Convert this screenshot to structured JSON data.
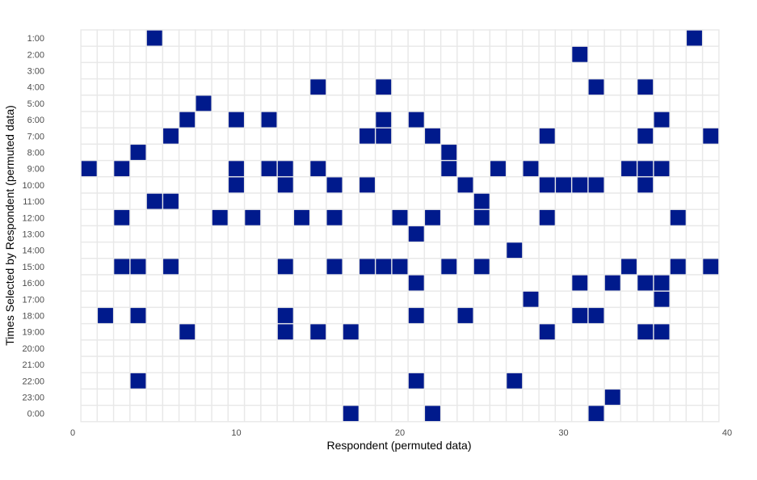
{
  "chart_data": {
    "type": "heatmap",
    "title": "",
    "xlabel": "Respondent (permuted data)",
    "ylabel": "Times Selected by Respondent (permuted data)",
    "xlim": [
      0,
      40
    ],
    "x_ticks": [
      0,
      10,
      20,
      30,
      40
    ],
    "y_categories": [
      "1:00",
      "2:00",
      "3:00",
      "4:00",
      "5:00",
      "6:00",
      "7:00",
      "8:00",
      "9:00",
      "10:00",
      "11:00",
      "12:00",
      "13:00",
      "14:00",
      "15:00",
      "16:00",
      "17:00",
      "18:00",
      "19:00",
      "20:00",
      "21:00",
      "22:00",
      "23:00",
      "0:00"
    ],
    "grid": true,
    "legend": "none",
    "colors": {
      "selected": "#001A8C",
      "unselected": "#FFFFFF",
      "grid": "#E8E8E8"
    },
    "cells": [
      {
        "respondent": 5,
        "time": "1:00"
      },
      {
        "respondent": 38,
        "time": "1:00"
      },
      {
        "respondent": 31,
        "time": "2:00"
      },
      {
        "respondent": 15,
        "time": "4:00"
      },
      {
        "respondent": 19,
        "time": "4:00"
      },
      {
        "respondent": 32,
        "time": "4:00"
      },
      {
        "respondent": 35,
        "time": "4:00"
      },
      {
        "respondent": 8,
        "time": "5:00"
      },
      {
        "respondent": 7,
        "time": "6:00"
      },
      {
        "respondent": 10,
        "time": "6:00"
      },
      {
        "respondent": 12,
        "time": "6:00"
      },
      {
        "respondent": 19,
        "time": "6:00"
      },
      {
        "respondent": 21,
        "time": "6:00"
      },
      {
        "respondent": 36,
        "time": "6:00"
      },
      {
        "respondent": 6,
        "time": "7:00"
      },
      {
        "respondent": 18,
        "time": "7:00"
      },
      {
        "respondent": 19,
        "time": "7:00"
      },
      {
        "respondent": 22,
        "time": "7:00"
      },
      {
        "respondent": 29,
        "time": "7:00"
      },
      {
        "respondent": 35,
        "time": "7:00"
      },
      {
        "respondent": 39,
        "time": "7:00"
      },
      {
        "respondent": 4,
        "time": "8:00"
      },
      {
        "respondent": 23,
        "time": "8:00"
      },
      {
        "respondent": 1,
        "time": "9:00"
      },
      {
        "respondent": 3,
        "time": "9:00"
      },
      {
        "respondent": 10,
        "time": "9:00"
      },
      {
        "respondent": 12,
        "time": "9:00"
      },
      {
        "respondent": 13,
        "time": "9:00"
      },
      {
        "respondent": 15,
        "time": "9:00"
      },
      {
        "respondent": 23,
        "time": "9:00"
      },
      {
        "respondent": 26,
        "time": "9:00"
      },
      {
        "respondent": 28,
        "time": "9:00"
      },
      {
        "respondent": 34,
        "time": "9:00"
      },
      {
        "respondent": 35,
        "time": "9:00"
      },
      {
        "respondent": 36,
        "time": "9:00"
      },
      {
        "respondent": 10,
        "time": "10:00"
      },
      {
        "respondent": 13,
        "time": "10:00"
      },
      {
        "respondent": 16,
        "time": "10:00"
      },
      {
        "respondent": 18,
        "time": "10:00"
      },
      {
        "respondent": 24,
        "time": "10:00"
      },
      {
        "respondent": 29,
        "time": "10:00"
      },
      {
        "respondent": 30,
        "time": "10:00"
      },
      {
        "respondent": 31,
        "time": "10:00"
      },
      {
        "respondent": 32,
        "time": "10:00"
      },
      {
        "respondent": 35,
        "time": "10:00"
      },
      {
        "respondent": 5,
        "time": "11:00"
      },
      {
        "respondent": 6,
        "time": "11:00"
      },
      {
        "respondent": 25,
        "time": "11:00"
      },
      {
        "respondent": 3,
        "time": "12:00"
      },
      {
        "respondent": 9,
        "time": "12:00"
      },
      {
        "respondent": 11,
        "time": "12:00"
      },
      {
        "respondent": 14,
        "time": "12:00"
      },
      {
        "respondent": 16,
        "time": "12:00"
      },
      {
        "respondent": 20,
        "time": "12:00"
      },
      {
        "respondent": 22,
        "time": "12:00"
      },
      {
        "respondent": 25,
        "time": "12:00"
      },
      {
        "respondent": 29,
        "time": "12:00"
      },
      {
        "respondent": 37,
        "time": "12:00"
      },
      {
        "respondent": 21,
        "time": "13:00"
      },
      {
        "respondent": 27,
        "time": "14:00"
      },
      {
        "respondent": 3,
        "time": "15:00"
      },
      {
        "respondent": 4,
        "time": "15:00"
      },
      {
        "respondent": 6,
        "time": "15:00"
      },
      {
        "respondent": 13,
        "time": "15:00"
      },
      {
        "respondent": 16,
        "time": "15:00"
      },
      {
        "respondent": 18,
        "time": "15:00"
      },
      {
        "respondent": 19,
        "time": "15:00"
      },
      {
        "respondent": 20,
        "time": "15:00"
      },
      {
        "respondent": 23,
        "time": "15:00"
      },
      {
        "respondent": 25,
        "time": "15:00"
      },
      {
        "respondent": 34,
        "time": "15:00"
      },
      {
        "respondent": 37,
        "time": "15:00"
      },
      {
        "respondent": 39,
        "time": "15:00"
      },
      {
        "respondent": 21,
        "time": "16:00"
      },
      {
        "respondent": 31,
        "time": "16:00"
      },
      {
        "respondent": 33,
        "time": "16:00"
      },
      {
        "respondent": 35,
        "time": "16:00"
      },
      {
        "respondent": 36,
        "time": "16:00"
      },
      {
        "respondent": 28,
        "time": "17:00"
      },
      {
        "respondent": 36,
        "time": "17:00"
      },
      {
        "respondent": 2,
        "time": "18:00"
      },
      {
        "respondent": 4,
        "time": "18:00"
      },
      {
        "respondent": 13,
        "time": "18:00"
      },
      {
        "respondent": 21,
        "time": "18:00"
      },
      {
        "respondent": 24,
        "time": "18:00"
      },
      {
        "respondent": 31,
        "time": "18:00"
      },
      {
        "respondent": 32,
        "time": "18:00"
      },
      {
        "respondent": 7,
        "time": "19:00"
      },
      {
        "respondent": 13,
        "time": "19:00"
      },
      {
        "respondent": 15,
        "time": "19:00"
      },
      {
        "respondent": 17,
        "time": "19:00"
      },
      {
        "respondent": 29,
        "time": "19:00"
      },
      {
        "respondent": 35,
        "time": "19:00"
      },
      {
        "respondent": 36,
        "time": "19:00"
      },
      {
        "respondent": 4,
        "time": "22:00"
      },
      {
        "respondent": 21,
        "time": "22:00"
      },
      {
        "respondent": 27,
        "time": "22:00"
      },
      {
        "respondent": 33,
        "time": "23:00"
      },
      {
        "respondent": 17,
        "time": "0:00"
      },
      {
        "respondent": 22,
        "time": "0:00"
      },
      {
        "respondent": 32,
        "time": "0:00"
      }
    ]
  }
}
